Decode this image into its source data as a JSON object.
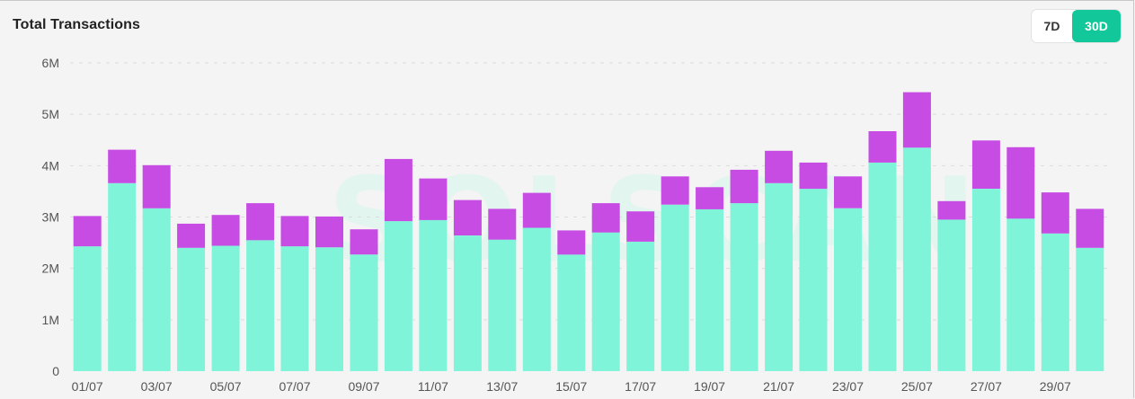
{
  "header": {
    "title": "Total Transactions",
    "range_options": [
      "7D",
      "30D"
    ],
    "selected_range": "30D"
  },
  "colors": {
    "series_base": "#7ff4d9",
    "series_top": "#c64ce3",
    "accent": "#12c89a"
  },
  "watermark": "SOLSCAN",
  "chart_data": {
    "type": "bar",
    "stacked": true,
    "title": "Total Transactions",
    "categories": [
      "01/07",
      "02/07",
      "03/07",
      "04/07",
      "05/07",
      "06/07",
      "07/07",
      "08/07",
      "09/07",
      "10/07",
      "11/07",
      "12/07",
      "13/07",
      "14/07",
      "15/07",
      "16/07",
      "17/07",
      "18/07",
      "19/07",
      "20/07",
      "21/07",
      "22/07",
      "23/07",
      "24/07",
      "25/07",
      "26/07",
      "27/07",
      "28/07",
      "29/07",
      "30/07"
    ],
    "x_tick_labels": [
      "01/07",
      "03/07",
      "05/07",
      "07/07",
      "09/07",
      "11/07",
      "13/07",
      "15/07",
      "17/07",
      "19/07",
      "21/07",
      "23/07",
      "25/07",
      "27/07",
      "29/07"
    ],
    "series": [
      {
        "values": [
          2.43,
          3.66,
          3.17,
          2.4,
          2.44,
          2.55,
          2.43,
          2.41,
          2.27,
          2.92,
          2.94,
          2.64,
          2.56,
          2.79,
          2.27,
          2.7,
          2.52,
          3.24,
          3.15,
          3.27,
          3.66,
          3.55,
          3.17,
          4.06,
          4.35,
          2.95,
          3.55,
          2.97,
          2.68,
          2.4
        ]
      },
      {
        "values": [
          0.59,
          0.65,
          0.84,
          0.47,
          0.6,
          0.72,
          0.59,
          0.6,
          0.49,
          1.21,
          0.81,
          0.69,
          0.6,
          0.68,
          0.47,
          0.57,
          0.59,
          0.55,
          0.43,
          0.65,
          0.63,
          0.51,
          0.62,
          0.61,
          1.08,
          0.36,
          0.94,
          1.39,
          0.8,
          0.76
        ]
      }
    ],
    "y_tick_labels": [
      "0",
      "1M",
      "2M",
      "3M",
      "4M",
      "5M",
      "6M"
    ],
    "ylim": [
      0,
      6
    ],
    "y_unit": "M",
    "grid": true,
    "legend": "none"
  }
}
